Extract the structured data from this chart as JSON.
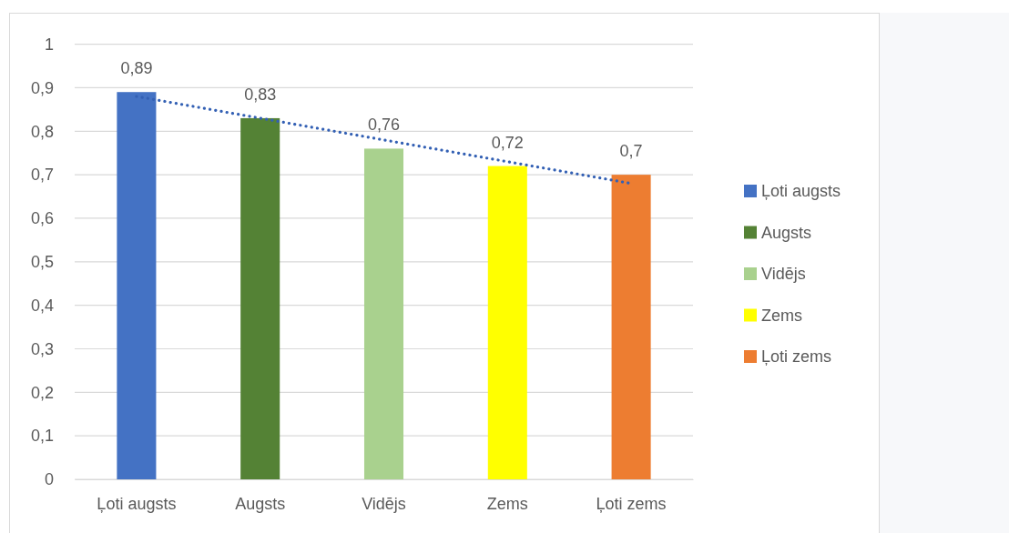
{
  "chart_data": {
    "type": "bar",
    "categories": [
      "Ļoti augsts",
      "Augsts",
      "Vidējs",
      "Zems",
      "Ļoti zems"
    ],
    "series": [
      {
        "name": "Ļoti augsts",
        "color": "#4472c4",
        "values": [
          0.89,
          null,
          null,
          null,
          null
        ],
        "value_labels": [
          "0,89",
          null,
          null,
          null,
          null
        ]
      },
      {
        "name": "Augsts",
        "color": "#548235",
        "values": [
          null,
          0.83,
          null,
          null,
          null
        ],
        "value_labels": [
          null,
          "0,83",
          null,
          null,
          null
        ]
      },
      {
        "name": "Vidējs",
        "color": "#a9d18e",
        "values": [
          null,
          null,
          0.76,
          null,
          null
        ],
        "value_labels": [
          null,
          null,
          "0,76",
          null,
          null
        ]
      },
      {
        "name": "Zems",
        "color": "#ffff00",
        "values": [
          null,
          null,
          null,
          0.72,
          null
        ],
        "value_labels": [
          null,
          null,
          null,
          "0,72",
          null
        ]
      },
      {
        "name": "Ļoti zems",
        "color": "#ed7d31",
        "values": [
          null,
          null,
          null,
          null,
          0.7
        ],
        "value_labels": [
          null,
          null,
          null,
          null,
          "0,7"
        ]
      },
      {
        "type": "line",
        "color": "#3360b4",
        "values": [
          0.88,
          0.83,
          0.78,
          0.73,
          0.68
        ]
      }
    ],
    "stacked": true,
    "ylim": [
      0,
      1
    ],
    "yticks": [
      0,
      {
        "value": 0.1,
        "label": "0,1"
      },
      {
        "value": 0.2,
        "label": "0,2"
      },
      {
        "value": 0.3,
        "label": "0,3"
      },
      {
        "value": 0.4,
        "label": "0,4"
      },
      {
        "value": 0.5,
        "label": "0,5"
      },
      {
        "value": 0.6,
        "label": "0,6"
      },
      {
        "value": 0.7,
        "label": "0,7"
      },
      {
        "value": 0.8,
        "label": "0,8"
      },
      {
        "value": 0.9,
        "label": "0,9"
      },
      1
    ],
    "grid": "y",
    "legend": "right",
    "line_style": "dotted"
  }
}
